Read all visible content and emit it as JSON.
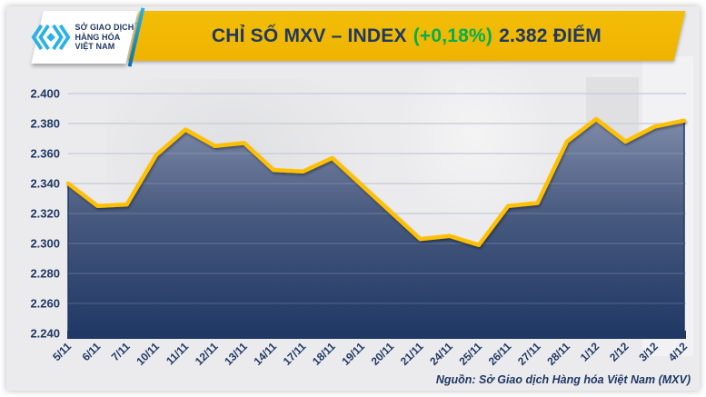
{
  "header": {
    "logo": {
      "line1": "SỞ GIAO DỊCH",
      "line2": "HÀNG HÓA",
      "line3": "VIỆT NAM",
      "tm": "™"
    },
    "title": {
      "prefix": "CHỈ SỐ MXV – INDEX",
      "change": "(+0,18%)",
      "value": "2.382 ĐIỂM"
    }
  },
  "chart_data": {
    "type": "area",
    "title": "CHỈ SỐ MXV – INDEX (+0,18%) 2.382 ĐIỂM",
    "categories": [
      "5/11",
      "6/11",
      "7/11",
      "10/11",
      "11/11",
      "12/11",
      "13/11",
      "14/11",
      "17/11",
      "18/11",
      "19/11",
      "20/11",
      "21/11",
      "24/11",
      "25/11",
      "26/11",
      "27/11",
      "28/11",
      "1/12",
      "2/12",
      "3/12",
      "4/12"
    ],
    "values": [
      2.34,
      2.325,
      2.326,
      2.359,
      2.376,
      2.365,
      2.367,
      2.349,
      2.348,
      2.357,
      2.339,
      2.321,
      2.303,
      2.305,
      2.299,
      2.325,
      2.327,
      2.368,
      2.383,
      2.368,
      2.378,
      2.382
    ],
    "ylim": [
      2.24,
      2.4
    ],
    "yticks": [
      "2.240",
      "2.260",
      "2.280",
      "2.300",
      "2.320",
      "2.340",
      "2.360",
      "2.380",
      "2.400"
    ],
    "grid": true,
    "legend": "none",
    "line_color": "#FFC000",
    "area_gradient": [
      "#7E8AA8",
      "#47597F",
      "#1F3864"
    ],
    "axis_color": "#1F3864",
    "grid_color": "#C5CAD3",
    "label_color": "#1F3864"
  },
  "footer": {
    "source": "Nguồn: Sở Giao dịch Hàng hóa Việt Nam (MXV)"
  },
  "colors": {
    "banner_gold": "#EFB700",
    "navy": "#1F3864",
    "green": "#00B050",
    "logo_cyan": "#2BB1E5",
    "background": "#EBEBED"
  }
}
